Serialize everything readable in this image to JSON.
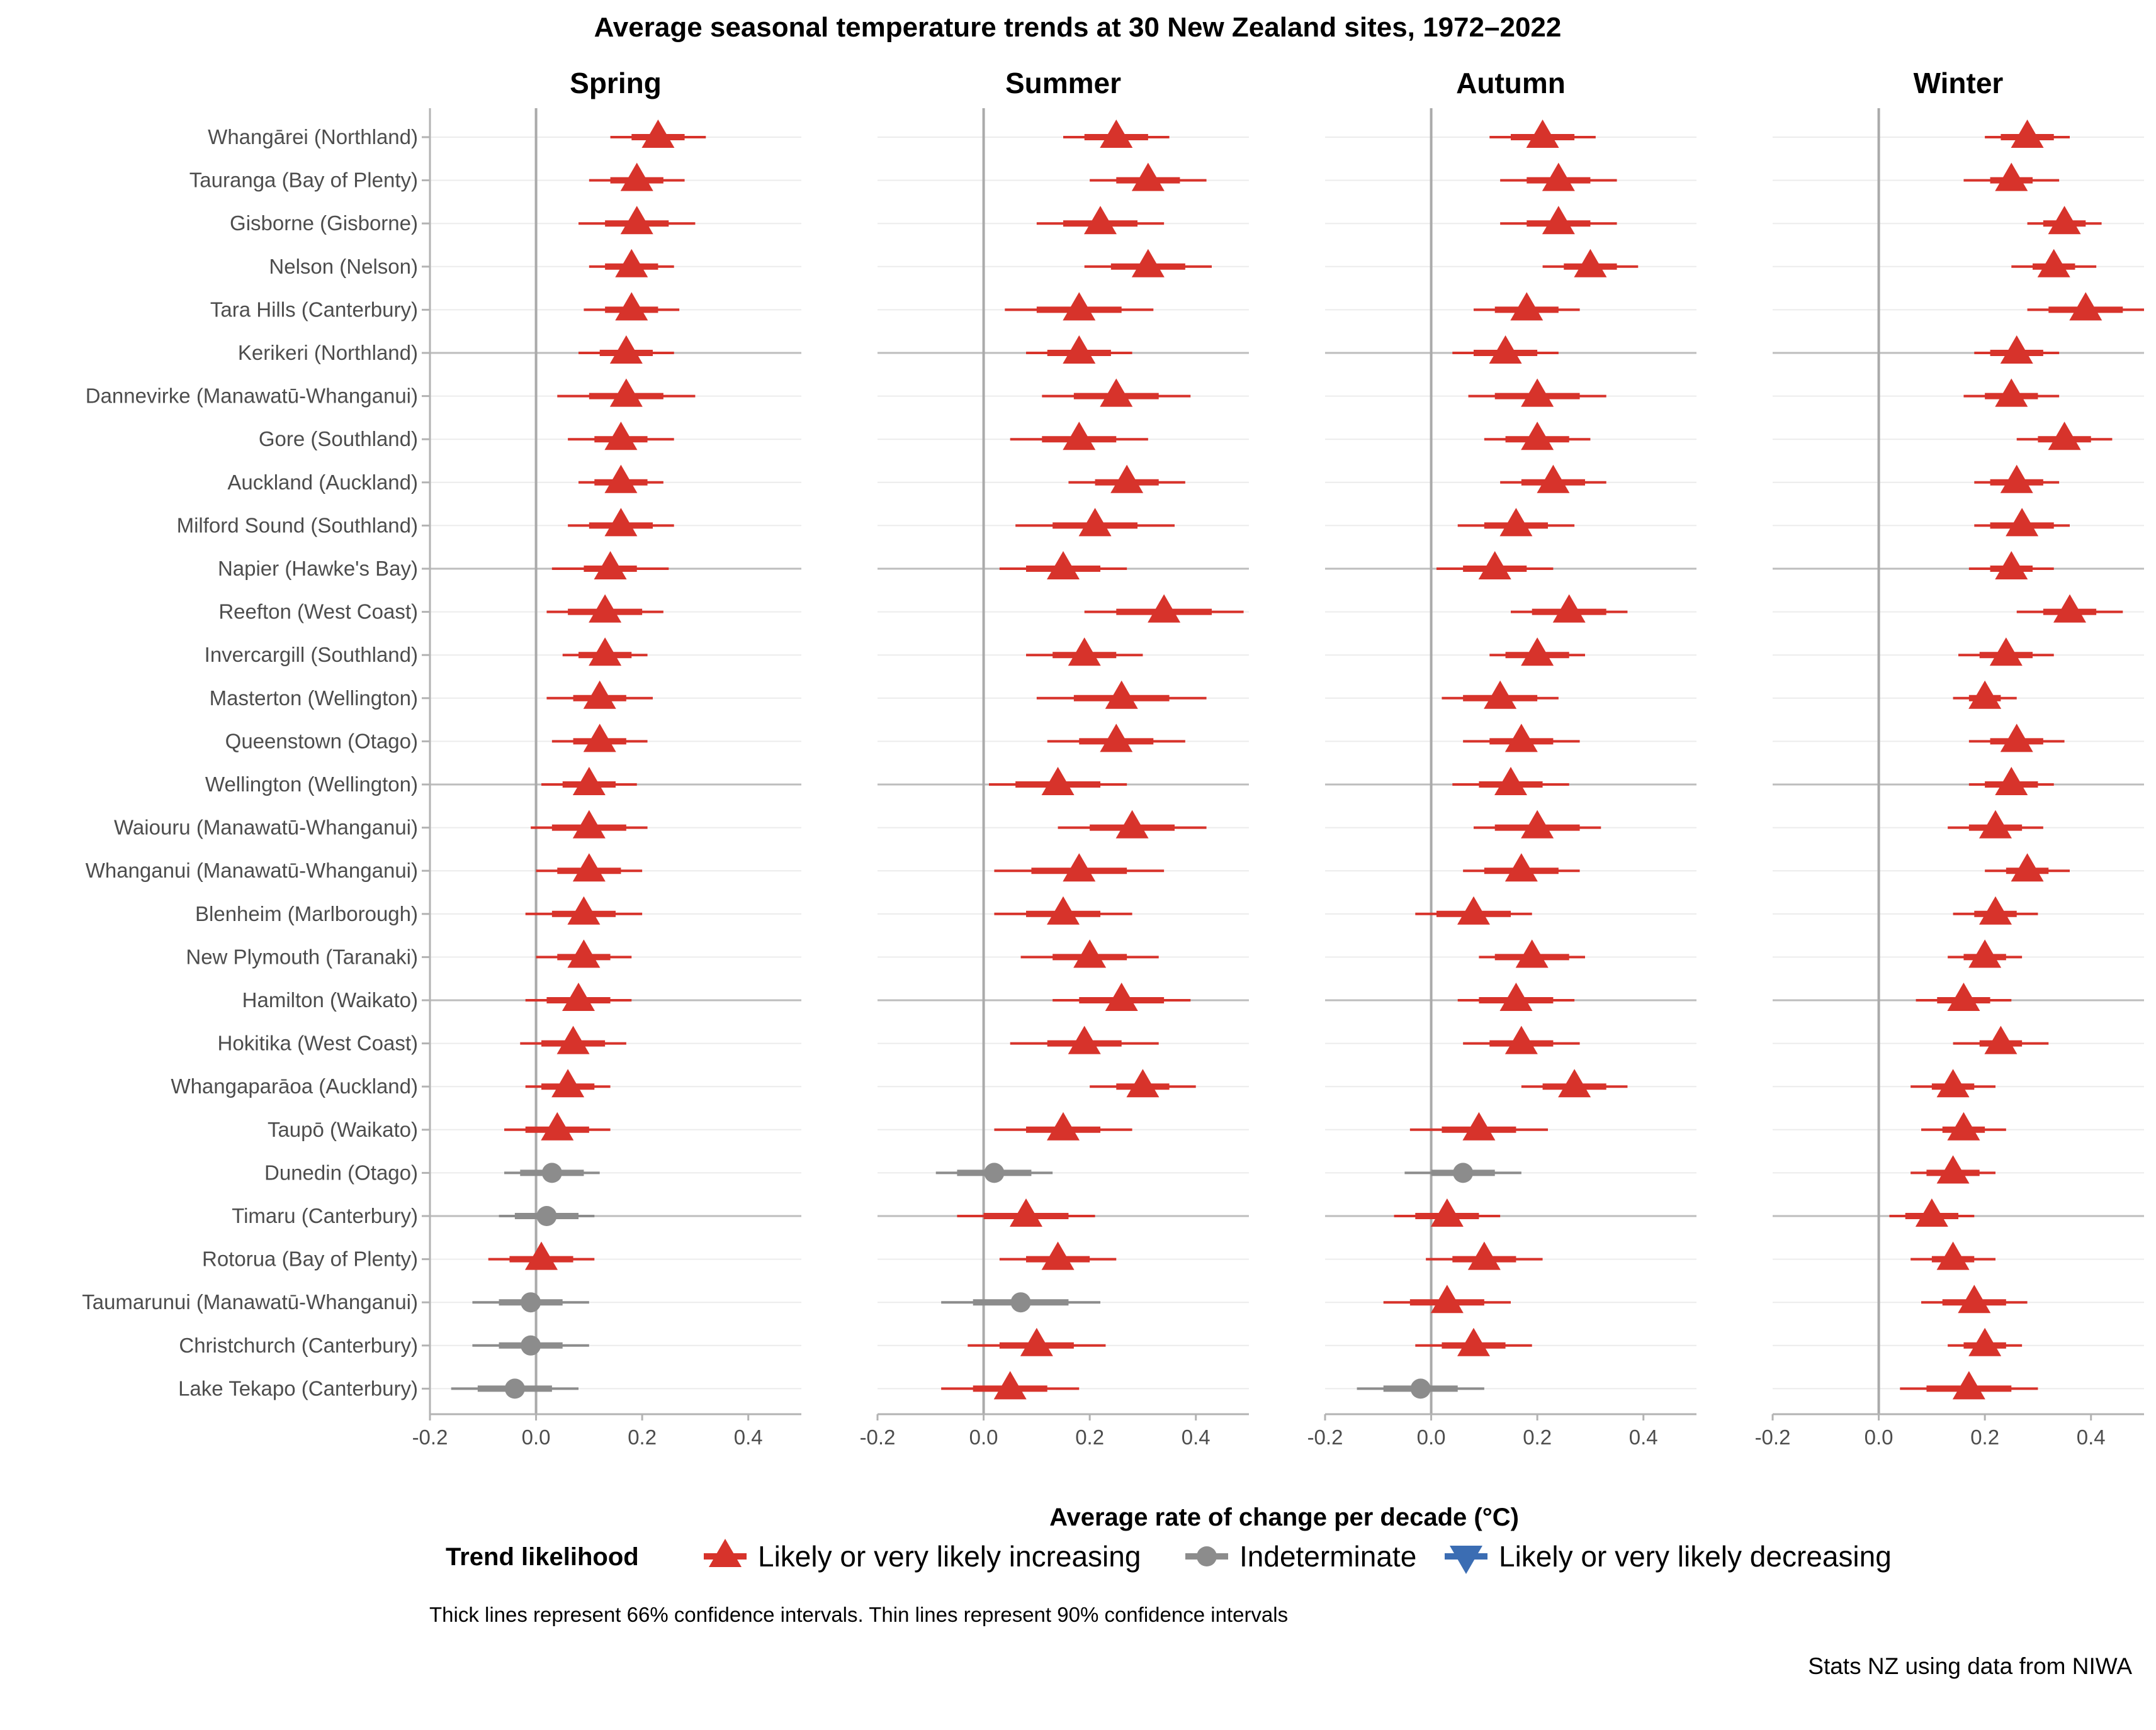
{
  "colors": {
    "increasing": "#d7332b",
    "indeterminate": "#8c8c8c",
    "decreasing": "#3b6db3",
    "zero_line": "#aaaaaa",
    "group_line": "#bdbdbd",
    "grid_line": "#ececec",
    "tick_text": "#4d4d4d"
  },
  "footnote": "Thick lines represent 66% confidence intervals. Thin lines represent 90% confidence intervals",
  "source": "Stats NZ using data from NIWA",
  "chart_data": {
    "type": "dot-interval",
    "title": "Average seasonal temperature trends at 30 New Zealand sites, 1972–2022",
    "xlabel": "Average rate of change per decade (°C)",
    "xlim": [
      -0.2,
      0.5
    ],
    "xticks": [
      -0.2,
      0,
      0.2,
      0.4
    ],
    "xtick_labels": [
      "-0.2",
      "0.0",
      "0.2",
      "0.4"
    ],
    "legend": {
      "title": "Trend likelihood",
      "position": "bottom",
      "items": [
        {
          "key": "inc",
          "label": "Likely or very likely increasing"
        },
        {
          "key": "ind",
          "label": "Indeterminate"
        },
        {
          "key": "dec",
          "label": "Likely or very likely decreasing"
        }
      ]
    },
    "sites": [
      "Whangārei (Northland)",
      "Tauranga (Bay of Plenty)",
      "Gisborne (Gisborne)",
      "Nelson (Nelson)",
      "Tara Hills (Canterbury)",
      "Kerikeri (Northland)",
      "Dannevirke (Manawatū-Whanganui)",
      "Gore (Southland)",
      "Auckland (Auckland)",
      "Milford Sound (Southland)",
      "Napier (Hawke's Bay)",
      "Reefton (West Coast)",
      "Invercargill (Southland)",
      "Masterton (Wellington)",
      "Queenstown (Otago)",
      "Wellington (Wellington)",
      "Waiouru (Manawatū-Whanganui)",
      "Whanganui (Manawatū-Whanganui)",
      "Blenheim (Marlborough)",
      "New Plymouth (Taranaki)",
      "Hamilton (Waikato)",
      "Hokitika (West Coast)",
      "Whangaparāoa (Auckland)",
      "Taupō (Waikato)",
      "Dunedin (Otago)",
      "Timaru (Canterbury)",
      "Rotorua (Bay of Plenty)",
      "Taumarunui (Manawatū-Whanganui)",
      "Christchurch (Canterbury)",
      "Lake Tekapo (Canterbury)"
    ],
    "panels": [
      {
        "season": "Spring",
        "estimates": [
          0.23,
          0.19,
          0.19,
          0.18,
          0.18,
          0.17,
          0.17,
          0.16,
          0.16,
          0.16,
          0.14,
          0.13,
          0.13,
          0.12,
          0.12,
          0.1,
          0.1,
          0.1,
          0.09,
          0.09,
          0.08,
          0.07,
          0.06,
          0.04,
          0.03,
          0.02,
          0.01,
          -0.01,
          -0.01,
          -0.04
        ],
        "half66": [
          0.05,
          0.05,
          0.06,
          0.05,
          0.05,
          0.05,
          0.07,
          0.05,
          0.05,
          0.06,
          0.05,
          0.07,
          0.05,
          0.05,
          0.05,
          0.05,
          0.07,
          0.06,
          0.06,
          0.05,
          0.06,
          0.06,
          0.05,
          0.06,
          0.06,
          0.06,
          0.06,
          0.06,
          0.06,
          0.07
        ],
        "half90": [
          0.09,
          0.09,
          0.11,
          0.08,
          0.09,
          0.09,
          0.13,
          0.1,
          0.08,
          0.1,
          0.11,
          0.11,
          0.08,
          0.1,
          0.09,
          0.09,
          0.11,
          0.1,
          0.11,
          0.09,
          0.1,
          0.1,
          0.08,
          0.1,
          0.09,
          0.09,
          0.1,
          0.11,
          0.11,
          0.12
        ],
        "trend": [
          "inc",
          "inc",
          "inc",
          "inc",
          "inc",
          "inc",
          "inc",
          "inc",
          "inc",
          "inc",
          "inc",
          "inc",
          "inc",
          "inc",
          "inc",
          "inc",
          "inc",
          "inc",
          "inc",
          "inc",
          "inc",
          "inc",
          "inc",
          "inc",
          "ind",
          "ind",
          "inc",
          "ind",
          "ind",
          "ind"
        ]
      },
      {
        "season": "Summer",
        "estimates": [
          0.25,
          0.31,
          0.22,
          0.31,
          0.18,
          0.18,
          0.25,
          0.18,
          0.27,
          0.21,
          0.15,
          0.34,
          0.19,
          0.26,
          0.25,
          0.14,
          0.28,
          0.18,
          0.15,
          0.2,
          0.26,
          0.19,
          0.3,
          0.15,
          0.02,
          0.08,
          0.14,
          0.07,
          0.1,
          0.05
        ],
        "half66": [
          0.06,
          0.06,
          0.07,
          0.07,
          0.08,
          0.06,
          0.08,
          0.07,
          0.06,
          0.08,
          0.07,
          0.09,
          0.06,
          0.09,
          0.07,
          0.08,
          0.08,
          0.09,
          0.07,
          0.07,
          0.08,
          0.07,
          0.05,
          0.07,
          0.07,
          0.08,
          0.06,
          0.09,
          0.07,
          0.07
        ],
        "half90": [
          0.1,
          0.11,
          0.12,
          0.12,
          0.14,
          0.1,
          0.14,
          0.13,
          0.11,
          0.15,
          0.12,
          0.15,
          0.11,
          0.16,
          0.13,
          0.13,
          0.14,
          0.16,
          0.13,
          0.13,
          0.13,
          0.14,
          0.1,
          0.13,
          0.11,
          0.13,
          0.11,
          0.15,
          0.13,
          0.13
        ],
        "trend": [
          "inc",
          "inc",
          "inc",
          "inc",
          "inc",
          "inc",
          "inc",
          "inc",
          "inc",
          "inc",
          "inc",
          "inc",
          "inc",
          "inc",
          "inc",
          "inc",
          "inc",
          "inc",
          "inc",
          "inc",
          "inc",
          "inc",
          "inc",
          "inc",
          "ind",
          "inc",
          "inc",
          "ind",
          "inc",
          "inc"
        ]
      },
      {
        "season": "Autumn",
        "estimates": [
          0.21,
          0.24,
          0.24,
          0.3,
          0.18,
          0.14,
          0.2,
          0.2,
          0.23,
          0.16,
          0.12,
          0.26,
          0.2,
          0.13,
          0.17,
          0.15,
          0.2,
          0.17,
          0.08,
          0.19,
          0.16,
          0.17,
          0.27,
          0.09,
          0.06,
          0.03,
          0.1,
          0.03,
          0.08,
          -0.02
        ],
        "half66": [
          0.06,
          0.06,
          0.06,
          0.05,
          0.06,
          0.06,
          0.08,
          0.06,
          0.06,
          0.06,
          0.06,
          0.07,
          0.06,
          0.07,
          0.06,
          0.06,
          0.08,
          0.07,
          0.07,
          0.07,
          0.07,
          0.06,
          0.06,
          0.07,
          0.06,
          0.06,
          0.06,
          0.07,
          0.06,
          0.07
        ],
        "half90": [
          0.1,
          0.11,
          0.11,
          0.09,
          0.1,
          0.1,
          0.13,
          0.1,
          0.1,
          0.11,
          0.11,
          0.11,
          0.09,
          0.11,
          0.11,
          0.11,
          0.12,
          0.11,
          0.11,
          0.1,
          0.11,
          0.11,
          0.1,
          0.13,
          0.11,
          0.1,
          0.11,
          0.12,
          0.11,
          0.12
        ],
        "trend": [
          "inc",
          "inc",
          "inc",
          "inc",
          "inc",
          "inc",
          "inc",
          "inc",
          "inc",
          "inc",
          "inc",
          "inc",
          "inc",
          "inc",
          "inc",
          "inc",
          "inc",
          "inc",
          "inc",
          "inc",
          "inc",
          "inc",
          "inc",
          "inc",
          "ind",
          "inc",
          "inc",
          "inc",
          "inc",
          "ind"
        ]
      },
      {
        "season": "Winter",
        "estimates": [
          0.28,
          0.25,
          0.35,
          0.33,
          0.39,
          0.26,
          0.25,
          0.35,
          0.26,
          0.27,
          0.25,
          0.36,
          0.24,
          0.2,
          0.26,
          0.25,
          0.22,
          0.28,
          0.22,
          0.2,
          0.16,
          0.23,
          0.14,
          0.16,
          0.14,
          0.1,
          0.14,
          0.18,
          0.2,
          0.17
        ],
        "half66": [
          0.05,
          0.04,
          0.04,
          0.04,
          0.07,
          0.05,
          0.05,
          0.05,
          0.05,
          0.06,
          0.04,
          0.05,
          0.05,
          0.03,
          0.05,
          0.05,
          0.05,
          0.04,
          0.04,
          0.04,
          0.05,
          0.04,
          0.04,
          0.04,
          0.05,
          0.05,
          0.04,
          0.06,
          0.04,
          0.08
        ],
        "half90": [
          0.08,
          0.09,
          0.07,
          0.08,
          0.11,
          0.08,
          0.09,
          0.09,
          0.08,
          0.09,
          0.08,
          0.1,
          0.09,
          0.06,
          0.09,
          0.08,
          0.09,
          0.08,
          0.08,
          0.07,
          0.09,
          0.09,
          0.08,
          0.08,
          0.08,
          0.08,
          0.08,
          0.1,
          0.07,
          0.13
        ],
        "trend": [
          "inc",
          "inc",
          "inc",
          "inc",
          "inc",
          "inc",
          "inc",
          "inc",
          "inc",
          "inc",
          "inc",
          "inc",
          "inc",
          "inc",
          "inc",
          "inc",
          "inc",
          "inc",
          "inc",
          "inc",
          "inc",
          "inc",
          "inc",
          "inc",
          "inc",
          "inc",
          "inc",
          "inc",
          "inc",
          "inc"
        ]
      }
    ]
  }
}
